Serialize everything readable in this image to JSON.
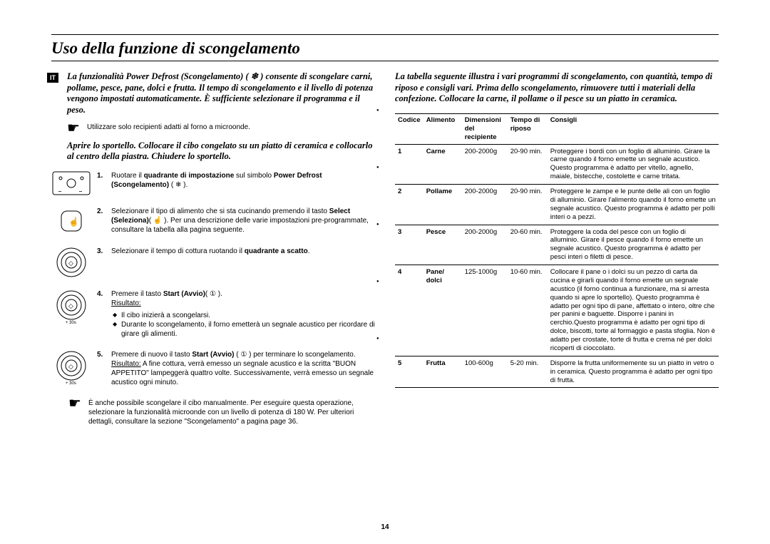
{
  "title": "Uso della funzione di scongelamento",
  "langTag": "IT",
  "pageNumber": "14",
  "left": {
    "intro": "La funzionalità Power Defrost (Scongelamento) ( ❄ ) consente di scongelare carni, pollame, pesce, pane, dolci e frutta. Il tempo di scongelamento e il livello di potenza vengono impostati automaticamente. È sufficiente selezionare il programma e il peso.",
    "pointerNote": "Utilizzare solo recipienti adatti al forno a microonde.",
    "intro2": "Aprire lo sportello. Collocare il cibo congelato su un piatto di ceramica e collocarlo al centro della piastra. Chiudere lo sportello.",
    "steps": [
      {
        "num": "1.",
        "text": "Ruotare il <b>quadrante di impostazione</b> sul simbolo <b>Power Defrost (Scongelamento)</b> ( ❄ )."
      },
      {
        "num": "2.",
        "text": "Selezionare il tipo di alimento che si sta cucinando premendo il tasto <b>Select (Seleziona)</b>( ☝ ). Per una descrizione delle varie impostazioni pre-programmate, consultare la tabella alla pagina seguente."
      },
      {
        "num": "3.",
        "text": "Selezionare il tempo di cottura ruotando il <b>quadrante a scatto</b>."
      },
      {
        "num": "4.",
        "text": "Premere il tasto <b>Start (Avvio)</b>( ① ).<br><span class=\"u\">Risultato:</span>",
        "sub": [
          "Il cibo inizierà a scongelarsi.",
          "Durante lo scongelamento, il forno emetterà un segnale acustico per ricordare di girare gli alimenti."
        ]
      },
      {
        "num": "5.",
        "text": "Premere di nuovo il tasto <b>Start (Avvio)</b> ( ① ) per terminare lo scongelamento.<br><span class=\"u\">Risultato:</span> A fine cottura, verrà emesso un segnale acustico e la scritta \"BUON APPETITO\" lampeggerà quattro volte. Successivamente, verrà emesso un segnale acustico ogni minuto."
      }
    ],
    "bottomNote": "È anche possibile scongelare il cibo manualmente. Per eseguire questa operazione, selezionare la funzionalità microonde con un livello di potenza di 180 W. Per ulteriori dettagli, consultare la sezione \"Scongelamento\" a pagina page 36."
  },
  "right": {
    "intro": "La tabella seguente illustra i vari programmi di scongelamento, con quantità, tempo di riposo e consigli vari. Prima dello scongelamento, rimuovere tutti i materiali della confezione. Collocare la carne, il pollame o il pesce su un piatto in ceramica.",
    "headers": {
      "codice": "Codice",
      "alimento": "Alimento",
      "dim": "Dimensioni del recipiente",
      "tempo": "Tempo di riposo",
      "consigli": "Consigli"
    },
    "rows": [
      {
        "codice": "1",
        "alimento": "Carne",
        "dim": "200-2000g",
        "tempo": "20-90 min.",
        "consigli": "Proteggere i bordi con un foglio di alluminio. Girare la carne quando il forno emette un segnale acustico. Questo programma è adatto per vitello, agnello, maiale, bistecche, costolette e carne tritata."
      },
      {
        "codice": "2",
        "alimento": "Pollame",
        "dim": "200-2000g",
        "tempo": "20-90 min.",
        "consigli": "Proteggere le zampe e le punte delle ali con un foglio di alluminio. Girare l'alimento quando il forno emette un segnale acustico. Questo programma è adatto per polli interi o a pezzi."
      },
      {
        "codice": "3",
        "alimento": "Pesce",
        "dim": "200-2000g",
        "tempo": "20-60 min.",
        "consigli": "Proteggere la coda del pesce con un foglio di alluminio. Girare il pesce quando il forno emette un segnale acustico. Questo programma è adatto per pesci interi o filetti di pesce."
      },
      {
        "codice": "4",
        "alimento": "Pane/ dolci",
        "dim": "125-1000g",
        "tempo": "10-60 min.",
        "consigli": "Collocare il pane o i dolci su un pezzo di carta da cucina e girarli quando il forno emette un segnale acustico (il forno continua a funzionare, ma si arresta quando si apre lo sportello). Questo programma è adatto per ogni tipo di pane, affettato o intero, oltre che per panini e baguette. Disporre i panini in cerchio.Questo programma è adatto per ogni tipo di dolce, biscotti, torte al formaggio e pasta sfoglia. Non è adatto per crostate, torte di frutta e crema né per dolci ricoperti di cioccolato."
      },
      {
        "codice": "5",
        "alimento": "Frutta",
        "dim": "100-600g",
        "tempo": "5-20 min.",
        "consigli": "Disporre la frutta uniformemente su un piatto in vetro o in ceramica. Questo programma è adatto per ogni tipo di frutta."
      }
    ]
  }
}
